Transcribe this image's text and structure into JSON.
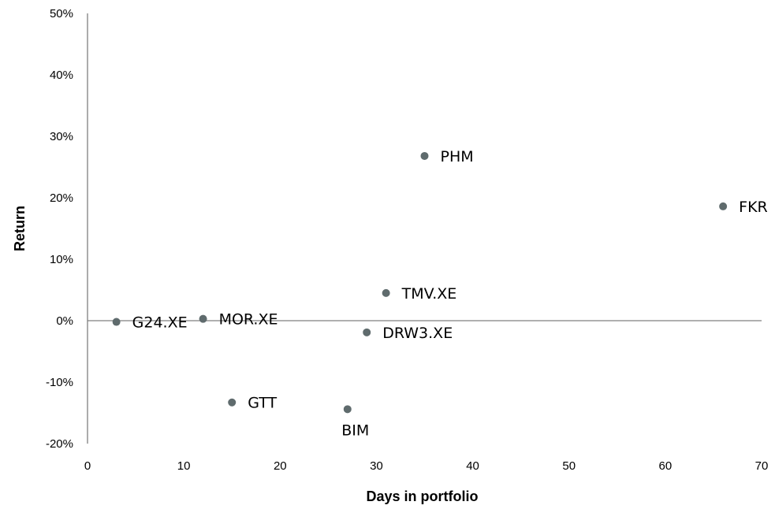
{
  "chart_data": {
    "type": "scatter",
    "title": "",
    "xlabel": "Days in portfolio",
    "ylabel": "Return",
    "xlim": [
      0,
      70
    ],
    "ylim": [
      -20,
      50
    ],
    "x_ticks": [
      0,
      10,
      20,
      30,
      40,
      50,
      60,
      70
    ],
    "y_ticks": [
      -20,
      -10,
      0,
      10,
      20,
      30,
      40,
      50
    ],
    "y_tick_labels": [
      "-20%",
      "-10%",
      "0%",
      "10%",
      "20%",
      "30%",
      "40%",
      "50%"
    ],
    "grid": false,
    "legend": "none",
    "marker_color": "#5f6b6d",
    "points": [
      {
        "label": "PHM",
        "x": 35,
        "y": 26.8,
        "label_pos": "right"
      },
      {
        "label": "FKR",
        "x": 66,
        "y": 18.6,
        "label_pos": "right"
      },
      {
        "label": "TMV.XE",
        "x": 31,
        "y": 4.5,
        "label_pos": "right"
      },
      {
        "label": "G24.XE",
        "x": 3,
        "y": -0.2,
        "label_pos": "right"
      },
      {
        "label": "MOR.XE",
        "x": 12,
        "y": 0.3,
        "label_pos": "right"
      },
      {
        "label": "DRW3.XE",
        "x": 29,
        "y": -1.9,
        "label_pos": "right"
      },
      {
        "label": "GTT",
        "x": 15,
        "y": -13.3,
        "label_pos": "right"
      },
      {
        "label": "BIM",
        "x": 27,
        "y": -14.4,
        "label_pos": "below"
      }
    ]
  }
}
